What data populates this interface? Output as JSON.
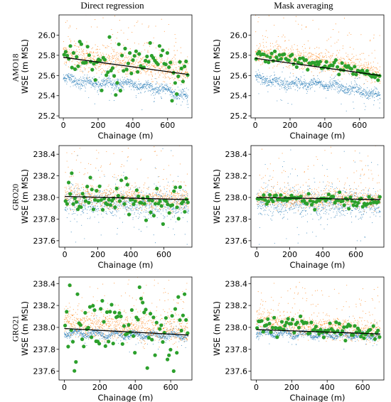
{
  "column_titles": [
    "Direct regression",
    "Mask averaging"
  ],
  "row_titles": [
    "AMO18",
    "GRO20",
    "GRO21"
  ],
  "colors": {
    "blue": "#1f77b4",
    "orange": "#ff7f0e",
    "green": "#2ca02c",
    "fit_line": "#000000"
  },
  "chart_data": [
    {
      "type": "scatter",
      "row": "AMO18",
      "column": "Direct regression",
      "xlabel": "Chainage (m)",
      "ylabel": "WSE (m MSL)",
      "xlim": [
        -25,
        740
      ],
      "ylim": [
        25.18,
        26.2
      ],
      "xticks": [
        0,
        200,
        400,
        600
      ],
      "yticks": [
        25.2,
        25.4,
        25.6,
        25.8,
        26.0
      ],
      "ytick_labels": [
        "25.2",
        "25.4",
        "25.6",
        "25.8",
        "26.0"
      ],
      "blue_band": {
        "x_range": [
          0,
          720
        ],
        "center": [
          25.57,
          25.52,
          25.52,
          25.47,
          25.39
        ],
        "spread": 0.05
      },
      "orange_band": {
        "x_range": [
          0,
          720
        ],
        "center": [
          25.8,
          25.76,
          25.72,
          25.68,
          25.62
        ],
        "spread": 0.12
      },
      "fit": {
        "x": [
          0,
          720
        ],
        "y": [
          25.78,
          25.61
        ]
      },
      "green_spread": 0.12
    },
    {
      "type": "scatter",
      "row": "AMO18",
      "column": "Mask averaging",
      "xlabel": "Chainage (m)",
      "ylabel": "WSE (m MSL)",
      "xlim": [
        -25,
        740
      ],
      "ylim": [
        25.18,
        26.2
      ],
      "xticks": [
        0,
        200,
        400,
        600
      ],
      "yticks": [
        25.2,
        25.4,
        25.6,
        25.8,
        26.0
      ],
      "ytick_labels": [
        "25.2",
        "25.4",
        "25.6",
        "25.8",
        "26.0"
      ],
      "blue_band": {
        "x_range": [
          0,
          720
        ],
        "center": [
          25.57,
          25.52,
          25.52,
          25.47,
          25.39
        ],
        "spread": 0.05
      },
      "orange_band": {
        "x_range": [
          0,
          720
        ],
        "center": [
          25.82,
          25.78,
          25.74,
          25.7,
          25.6
        ],
        "spread": 0.1
      },
      "fit": {
        "x": [
          0,
          720
        ],
        "y": [
          25.77,
          25.6
        ]
      },
      "green_spread": 0.03
    },
    {
      "type": "scatter",
      "row": "GRO20",
      "column": "Direct regression",
      "xlabel": "Chainage (m)",
      "ylabel": "WSE (m MSL)",
      "xlim": [
        -35,
        770
      ],
      "ylim": [
        237.54,
        238.48
      ],
      "xticks": [
        0,
        200,
        400,
        600
      ],
      "yticks": [
        237.6,
        237.8,
        238.0,
        238.2,
        238.4
      ],
      "ytick_labels": [
        "237.6",
        "237.8",
        "238.0",
        "238.2",
        "238.4"
      ],
      "blue_band": {
        "x_range": [
          0,
          750
        ],
        "center": [
          237.95,
          237.95,
          237.94,
          237.94,
          237.93
        ],
        "spread": 0.12
      },
      "orange_band": {
        "x_range": [
          0,
          750
        ],
        "center": [
          238.02,
          238.0,
          237.99,
          237.98,
          237.98
        ],
        "spread": 0.1
      },
      "fit": {
        "x": [
          0,
          750
        ],
        "y": [
          238.01,
          237.98
        ]
      },
      "green_spread": 0.08
    },
    {
      "type": "scatter",
      "row": "GRO20",
      "column": "Mask averaging",
      "xlabel": "Chainage (m)",
      "ylabel": "WSE (m MSL)",
      "xlim": [
        -35,
        770
      ],
      "ylim": [
        237.54,
        238.48
      ],
      "xticks": [
        0,
        200,
        400,
        600
      ],
      "yticks": [
        237.6,
        237.8,
        238.0,
        238.2,
        238.4
      ],
      "ytick_labels": [
        "237.6",
        "237.8",
        "238.0",
        "238.2",
        "238.4"
      ],
      "blue_band": {
        "x_range": [
          0,
          750
        ],
        "center": [
          237.95,
          237.95,
          237.94,
          237.94,
          237.93
        ],
        "spread": 0.12
      },
      "orange_band": {
        "x_range": [
          0,
          750
        ],
        "center": [
          238.0,
          237.99,
          237.98,
          237.98,
          237.97
        ],
        "spread": 0.08
      },
      "fit": {
        "x": [
          0,
          750
        ],
        "y": [
          238.0,
          237.98
        ]
      },
      "green_spread": 0.03
    },
    {
      "type": "scatter",
      "row": "GRO21",
      "column": "Direct regression",
      "xlabel": "Chainage (m)",
      "ylabel": "WSE (m MSL)",
      "xlim": [
        -30,
        720
      ],
      "ylim": [
        237.52,
        238.46
      ],
      "xticks": [
        0,
        200,
        400,
        600
      ],
      "yticks": [
        237.6,
        237.8,
        238.0,
        238.2,
        238.4
      ],
      "ytick_labels": [
        "237.6",
        "237.8",
        "238.0",
        "238.2",
        "238.4"
      ],
      "blue_band": {
        "x_range": [
          0,
          700
        ],
        "center": [
          237.95,
          237.94,
          237.93,
          237.93,
          237.92
        ],
        "spread": 0.03
      },
      "orange_band": {
        "x_range": [
          0,
          700
        ],
        "center": [
          238.05,
          238.02,
          238.0,
          237.98,
          237.97
        ],
        "spread": 0.12
      },
      "fit": {
        "x": [
          0,
          700
        ],
        "y": [
          237.99,
          237.93
        ]
      },
      "green_spread": 0.2
    },
    {
      "type": "scatter",
      "row": "GRO21",
      "column": "Mask averaging",
      "xlabel": "Chainage (m)",
      "ylabel": "WSE (m MSL)",
      "xlim": [
        -30,
        720
      ],
      "ylim": [
        237.52,
        238.46
      ],
      "xticks": [
        0,
        200,
        400,
        600
      ],
      "yticks": [
        237.6,
        237.8,
        238.0,
        238.2,
        238.4
      ],
      "ytick_labels": [
        "237.6",
        "237.8",
        "238.0",
        "238.2",
        "238.4"
      ],
      "blue_band": {
        "x_range": [
          0,
          700
        ],
        "center": [
          237.95,
          237.94,
          237.93,
          237.93,
          237.92
        ],
        "spread": 0.03
      },
      "orange_band": {
        "x_range": [
          0,
          700
        ],
        "center": [
          238.05,
          238.02,
          238.0,
          237.98,
          237.97
        ],
        "spread": 0.1
      },
      "fit": {
        "x": [
          0,
          700
        ],
        "y": [
          237.98,
          237.94
        ]
      },
      "green_spread": 0.04
    }
  ]
}
